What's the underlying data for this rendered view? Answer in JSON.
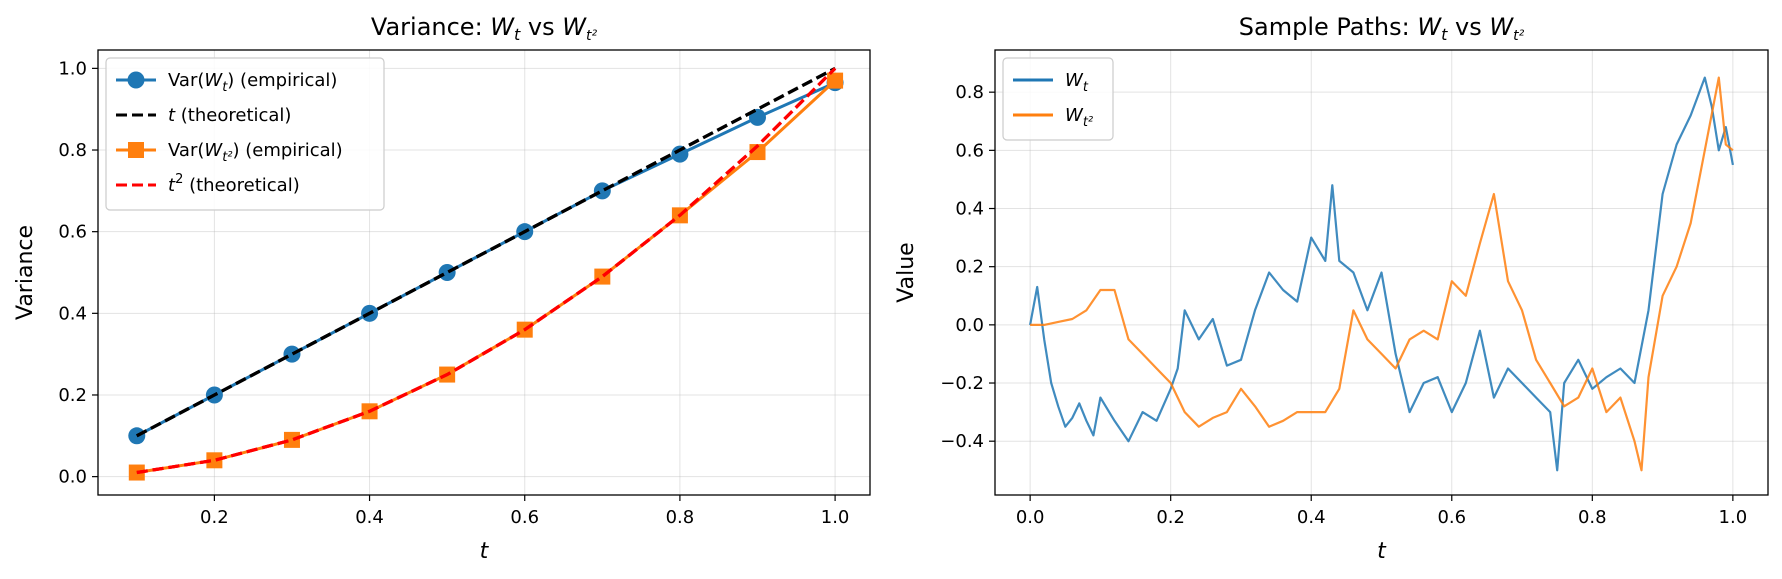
{
  "chart_data": [
    {
      "type": "line",
      "title": "Variance: W_t vs W_{t²}",
      "title_parts": {
        "prefix": "Variance: ",
        "a": "W",
        "a_sub": "t",
        "mid": " vs ",
        "b": "W",
        "b_sub": "t²"
      },
      "xlabel": "t",
      "ylabel": "Variance",
      "xlim": [
        0.05,
        1.045
      ],
      "ylim": [
        -0.045,
        1.045
      ],
      "xticks": [
        0.2,
        0.4,
        0.6,
        0.8,
        1.0
      ],
      "xtick_labels": [
        "0.2",
        "0.4",
        "0.6",
        "0.8",
        "1.0"
      ],
      "yticks": [
        0.0,
        0.2,
        0.4,
        0.6,
        0.8,
        1.0
      ],
      "ytick_labels": [
        "0.0",
        "0.2",
        "0.4",
        "0.6",
        "0.8",
        "1.0"
      ],
      "grid": true,
      "legend_position": "top-left",
      "x": [
        0.1,
        0.2,
        0.3,
        0.4,
        0.5,
        0.6,
        0.7,
        0.8,
        0.9,
        1.0
      ],
      "series": [
        {
          "name": "Var(W_t) (empirical)",
          "legend": {
            "pre": "Var(",
            "var": "W",
            "sub": "t",
            "post": ") (empirical)"
          },
          "color": "#1f77b4",
          "style": "solid",
          "marker": "circle",
          "values": [
            0.1,
            0.2,
            0.3,
            0.4,
            0.5,
            0.6,
            0.7,
            0.79,
            0.88,
            0.965
          ]
        },
        {
          "name": "t (theoretical)",
          "legend": {
            "pre": "",
            "var": "t",
            "sub": "",
            "post": " (theoretical)"
          },
          "color": "#000000",
          "style": "dashed",
          "marker": "none",
          "values": [
            0.1,
            0.2,
            0.3,
            0.4,
            0.5,
            0.6,
            0.7,
            0.8,
            0.9,
            1.0
          ]
        },
        {
          "name": "Var(W_{t²}) (empirical)",
          "legend": {
            "pre": "Var(",
            "var": "W",
            "sub": "t²",
            "post": ") (empirical)"
          },
          "color": "#ff7f0e",
          "style": "solid",
          "marker": "square",
          "values": [
            0.01,
            0.04,
            0.09,
            0.16,
            0.25,
            0.36,
            0.49,
            0.64,
            0.795,
            0.97
          ]
        },
        {
          "name": "t² (theoretical)",
          "legend": {
            "pre": "",
            "var": "t",
            "sub": "2",
            "post": " (theoretical)",
            "sup": true
          },
          "color": "#ff0000",
          "style": "dashed",
          "marker": "none",
          "values": [
            0.01,
            0.04,
            0.09,
            0.16,
            0.25,
            0.36,
            0.49,
            0.64,
            0.81,
            1.0
          ]
        }
      ]
    },
    {
      "type": "line",
      "title": "Sample Paths: W_t vs W_{t²}",
      "title_parts": {
        "prefix": "Sample Paths: ",
        "a": "W",
        "a_sub": "t",
        "mid": " vs ",
        "b": "W",
        "b_sub": "t²"
      },
      "xlabel": "t",
      "ylabel": "Value",
      "xlim": [
        -0.05,
        1.05
      ],
      "ylim": [
        -0.585,
        0.945
      ],
      "xticks": [
        0.0,
        0.2,
        0.4,
        0.6,
        0.8,
        1.0
      ],
      "xtick_labels": [
        "0.0",
        "0.2",
        "0.4",
        "0.6",
        "0.8",
        "1.0"
      ],
      "yticks": [
        -0.4,
        -0.2,
        0.0,
        0.2,
        0.4,
        0.6,
        0.8
      ],
      "ytick_labels": [
        "−0.4",
        "−0.2",
        "0.0",
        "0.2",
        "0.4",
        "0.6",
        "0.8"
      ],
      "grid": true,
      "legend_position": "top-left",
      "series": [
        {
          "name": "W_t",
          "legend": {
            "var": "W",
            "sub": "t"
          },
          "color": "#1f77b4",
          "x": [
            0,
            0.01,
            0.02,
            0.03,
            0.04,
            0.05,
            0.06,
            0.07,
            0.08,
            0.09,
            0.1,
            0.12,
            0.14,
            0.16,
            0.18,
            0.2,
            0.21,
            0.22,
            0.24,
            0.26,
            0.28,
            0.3,
            0.32,
            0.34,
            0.36,
            0.38,
            0.4,
            0.42,
            0.43,
            0.44,
            0.46,
            0.48,
            0.5,
            0.52,
            0.54,
            0.56,
            0.58,
            0.6,
            0.62,
            0.64,
            0.66,
            0.68,
            0.7,
            0.72,
            0.74,
            0.75,
            0.76,
            0.78,
            0.8,
            0.82,
            0.84,
            0.86,
            0.88,
            0.9,
            0.92,
            0.94,
            0.96,
            0.97,
            0.98,
            0.99,
            1.0
          ],
          "values": [
            0.0,
            0.13,
            -0.05,
            -0.2,
            -0.28,
            -0.35,
            -0.32,
            -0.27,
            -0.33,
            -0.38,
            -0.25,
            -0.33,
            -0.4,
            -0.3,
            -0.33,
            -0.22,
            -0.15,
            0.05,
            -0.05,
            0.02,
            -0.14,
            -0.12,
            0.05,
            0.18,
            0.12,
            0.08,
            0.3,
            0.22,
            0.48,
            0.22,
            0.18,
            0.05,
            0.18,
            -0.1,
            -0.3,
            -0.2,
            -0.18,
            -0.3,
            -0.2,
            -0.02,
            -0.25,
            -0.15,
            -0.2,
            -0.25,
            -0.3,
            -0.5,
            -0.2,
            -0.12,
            -0.22,
            -0.18,
            -0.15,
            -0.2,
            0.05,
            0.45,
            0.62,
            0.72,
            0.85,
            0.75,
            0.6,
            0.68,
            0.55
          ]
        },
        {
          "name": "W_{t²}",
          "legend": {
            "var": "W",
            "sub": "t²"
          },
          "color": "#ff7f0e",
          "x": [
            0,
            0.02,
            0.04,
            0.06,
            0.08,
            0.1,
            0.12,
            0.14,
            0.16,
            0.18,
            0.2,
            0.22,
            0.24,
            0.26,
            0.28,
            0.3,
            0.32,
            0.34,
            0.36,
            0.38,
            0.4,
            0.42,
            0.44,
            0.46,
            0.48,
            0.5,
            0.52,
            0.54,
            0.56,
            0.58,
            0.6,
            0.62,
            0.64,
            0.66,
            0.68,
            0.7,
            0.72,
            0.74,
            0.76,
            0.78,
            0.8,
            0.82,
            0.84,
            0.86,
            0.87,
            0.88,
            0.9,
            0.92,
            0.94,
            0.96,
            0.98,
            0.99,
            1.0
          ],
          "values": [
            0.0,
            0.0,
            0.01,
            0.02,
            0.05,
            0.12,
            0.12,
            -0.05,
            -0.1,
            -0.15,
            -0.2,
            -0.3,
            -0.35,
            -0.32,
            -0.3,
            -0.22,
            -0.28,
            -0.35,
            -0.33,
            -0.3,
            -0.3,
            -0.3,
            -0.22,
            0.05,
            -0.05,
            -0.1,
            -0.15,
            -0.05,
            -0.02,
            -0.05,
            0.15,
            0.1,
            0.28,
            0.45,
            0.15,
            0.05,
            -0.12,
            -0.2,
            -0.28,
            -0.25,
            -0.15,
            -0.3,
            -0.25,
            -0.4,
            -0.5,
            -0.18,
            0.1,
            0.2,
            0.35,
            0.6,
            0.85,
            0.62,
            0.6
          ]
        }
      ]
    }
  ]
}
